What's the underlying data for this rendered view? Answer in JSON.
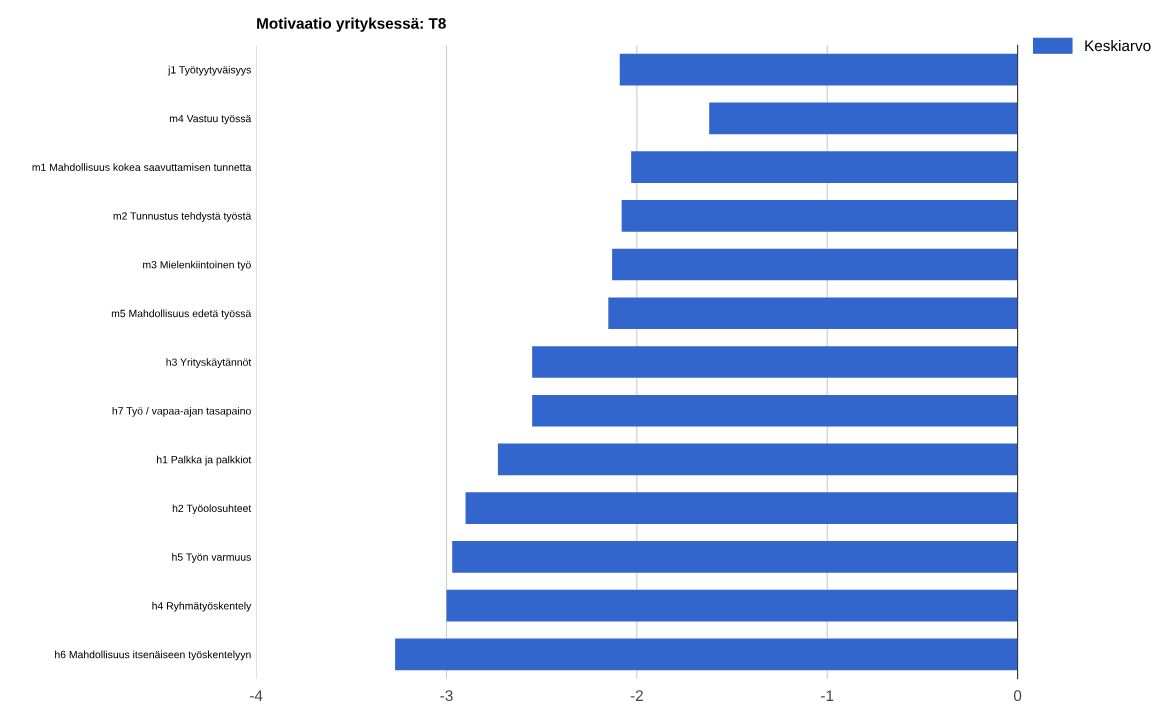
{
  "chart_data": {
    "type": "bar",
    "orientation": "horizontal",
    "title": "Motivaatio yrityksessä: T8",
    "categories": [
      "j1 Työtyytyväisyys",
      "m4 Vastuu työssä",
      "m1 Mahdollisuus kokea saavuttamisen tunnetta",
      "m2 Tunnustus tehdystä työstä",
      "m3 Mielenkiintoinen työ",
      "m5 Mahdollisuus edetä työssä",
      "h3 Yrityskäytännöt",
      "h7 Työ / vapaa-ajan tasapaino",
      "h1 Palkka ja palkkiot",
      "h2 Työolosuhteet",
      "h5 Työn varmuus",
      "h4 Ryhmätyöskentely",
      "h6 Mahdollisuus itsenäiseen työskentelyyn"
    ],
    "series": [
      {
        "name": "Keskiarvo",
        "color": "#3366cc",
        "values": [
          -2.09,
          -1.62,
          -2.03,
          -2.08,
          -2.13,
          -2.15,
          -2.55,
          -2.55,
          -2.73,
          -2.9,
          -2.97,
          -3.0,
          -3.27
        ]
      }
    ],
    "xlim": [
      -4,
      0
    ],
    "xticks": [
      -4,
      -3,
      -2,
      -1,
      0
    ],
    "grid": "x",
    "legend": "top right"
  }
}
